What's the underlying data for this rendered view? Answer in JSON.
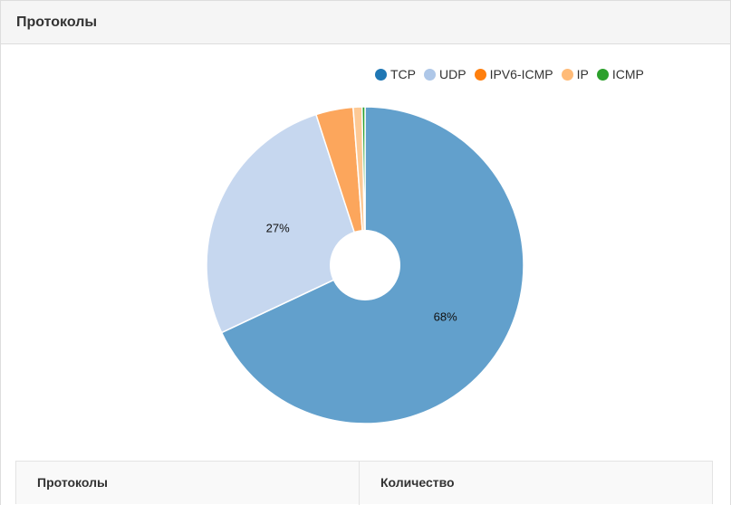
{
  "panel": {
    "title": "Протоколы"
  },
  "chart_data": {
    "type": "pie",
    "title": "",
    "categories": [
      "TCP",
      "UDP",
      "IPV6-ICMP",
      "IP",
      "ICMP"
    ],
    "values": [
      68,
      27,
      3.8,
      0.9,
      0.3
    ],
    "value_labels": [
      "68%",
      "27%",
      "",
      "",
      ""
    ],
    "colors": [
      "#62a0cc",
      "#c6d7ef",
      "#fca65c",
      "#fdc995",
      "#2ca02c"
    ],
    "legend_colors": [
      "#1f77b4",
      "#aec7e8",
      "#ff7f0e",
      "#ffbb78",
      "#2ca02c"
    ],
    "legend_position": "top-right",
    "donut_hole": true
  },
  "table": {
    "headers": [
      "Протоколы",
      "Количество"
    ]
  }
}
